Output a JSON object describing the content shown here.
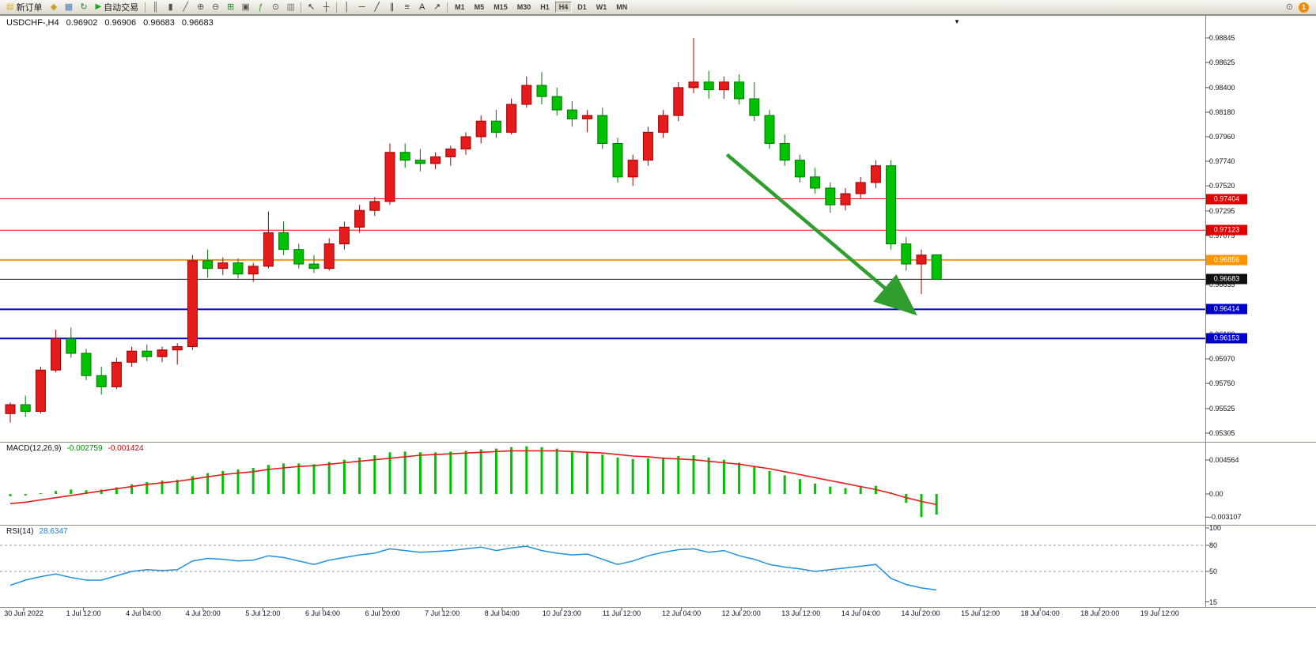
{
  "colors": {
    "up": "#e51b1b",
    "up_stroke": "#9b0000",
    "down": "#00c200",
    "down_stroke": "#007400",
    "macd_hist": "#00c200",
    "macd_signal": "#e51b1b",
    "rsi_line": "#1e90e0",
    "arrow": "#2f9e2f",
    "divider": "#8f8c84"
  },
  "toolbar": {
    "new_order_label": "新订单",
    "auto_trading_label": "自动交易",
    "icons": [
      {
        "name": "metaeditor-icon",
        "g": "◆",
        "c": "#c9a227"
      },
      {
        "name": "market-watch-icon",
        "g": "▦",
        "c": "#4a7ab5"
      },
      {
        "name": "refresh-icon",
        "g": "↻",
        "c": "#2a8a2a"
      },
      {
        "name": "sep"
      },
      {
        "name": "bar-chart-icon",
        "g": "║",
        "c": "#555555"
      },
      {
        "name": "candlestick-chart-icon",
        "g": "▮",
        "c": "#555555"
      },
      {
        "name": "line-chart-icon",
        "g": "╱",
        "c": "#555555"
      },
      {
        "name": "zoom-in-icon",
        "g": "⊕",
        "c": "#555555"
      },
      {
        "name": "zoom-out-icon",
        "g": "⊖",
        "c": "#555555"
      },
      {
        "name": "tile-windows-icon",
        "g": "⊞",
        "c": "#2a8a2a"
      },
      {
        "name": "cascade-windows-icon",
        "g": "▣",
        "c": "#555555"
      },
      {
        "name": "indicators-icon",
        "g": "ƒ",
        "c": "#1faa1f"
      },
      {
        "name": "period-icon",
        "g": "⊙",
        "c": "#555555"
      },
      {
        "name": "templates-icon",
        "g": "▥",
        "c": "#777777"
      },
      {
        "name": "sep"
      },
      {
        "name": "cursor-icon",
        "g": "↖",
        "c": "#333333"
      },
      {
        "name": "crosshair-icon",
        "g": "┼",
        "c": "#333333"
      },
      {
        "name": "sep"
      },
      {
        "name": "vertical-line-icon",
        "g": "│",
        "c": "#333333"
      },
      {
        "name": "horizontal-line-icon",
        "g": "─",
        "c": "#333333"
      },
      {
        "name": "trendline-icon",
        "g": "╱",
        "c": "#333333"
      },
      {
        "name": "channel-icon",
        "g": "∥",
        "c": "#333333"
      },
      {
        "name": "fibonacci-icon",
        "g": "≡",
        "c": "#333333"
      },
      {
        "name": "text-icon",
        "g": "A",
        "c": "#333333"
      },
      {
        "name": "arrows-icon",
        "g": "↗",
        "c": "#333333"
      },
      {
        "name": "sep"
      }
    ],
    "timeframes": [
      "M1",
      "M5",
      "M15",
      "M30",
      "H1",
      "H4",
      "D1",
      "W1",
      "MN"
    ],
    "active_timeframe": "H4",
    "notification_count": "1"
  },
  "chart": {
    "title": {
      "symbol_tf": "USDCHF-,H4",
      "open": "0.96902",
      "high": "0.96906",
      "low": "0.96683",
      "close": "0.96683"
    },
    "price_badges": [
      {
        "text": "0.97404",
        "price": 0.97404,
        "color": "#e00000"
      },
      {
        "text": "0.97123",
        "price": 0.97123,
        "color": "#e00000"
      },
      {
        "text": "0.96856",
        "price": 0.96856,
        "color": "#ff9400"
      },
      {
        "text": "0.96683",
        "price": 0.96683,
        "color": "#111111"
      },
      {
        "text": "0.96414",
        "price": 0.96414,
        "color": "#0000cc"
      },
      {
        "text": "0.96153",
        "price": 0.96153,
        "color": "#0000cc"
      }
    ]
  },
  "chart_data": {
    "type": "candlestick",
    "symbol": "USDCHF",
    "timeframe": "H4",
    "color_convention": "red=up, green=down",
    "axis": {
      "top_price": 0.98845,
      "bottom_price": 0.95305
    },
    "price_axis_ticks": [
      "0.98845",
      "0.98625",
      "0.98400",
      "0.98180",
      "0.97960",
      "0.97740",
      "0.97520",
      "0.97295",
      "0.97075",
      "0.96635",
      "0.96190",
      "0.95970",
      "0.95750",
      "0.95525",
      "0.95305"
    ],
    "horizontal_lines": [
      {
        "name": "resistance-line-upper",
        "price": 0.97404,
        "color": "#ff0000",
        "width": 1
      },
      {
        "name": "resistance-line-lower",
        "price": 0.97123,
        "color": "#ff0000",
        "width": 1
      },
      {
        "name": "support-orange-line",
        "price": 0.96856,
        "color": "#ff9400",
        "width": 2
      },
      {
        "name": "current-price-line",
        "price": 0.96683,
        "color": "#1a1a1a",
        "width": 1
      },
      {
        "name": "target-blue-line-upper",
        "price": 0.96414,
        "color": "#0000cc",
        "width": 2
      },
      {
        "name": "target-blue-line-lower",
        "price": 0.96153,
        "color": "#0000cc",
        "width": 2
      }
    ],
    "current_price": 0.96683,
    "trend_arrow": {
      "start_index": 47.2,
      "start_price": 0.978,
      "end_index": 59.2,
      "end_price": 0.9642,
      "color": "#2f9e2f",
      "direction": "down"
    },
    "candles_ohlc": [
      [
        0.9548,
        0.9558,
        0.954,
        0.9556
      ],
      [
        0.9556,
        0.9564,
        0.9545,
        0.955
      ],
      [
        0.955,
        0.959,
        0.9548,
        0.9587
      ],
      [
        0.9587,
        0.9623,
        0.9585,
        0.9615
      ],
      [
        0.9615,
        0.9625,
        0.9598,
        0.9602
      ],
      [
        0.9602,
        0.9606,
        0.9578,
        0.9582
      ],
      [
        0.9582,
        0.959,
        0.9565,
        0.9572
      ],
      [
        0.9572,
        0.9598,
        0.957,
        0.9594
      ],
      [
        0.9594,
        0.9608,
        0.959,
        0.9604
      ],
      [
        0.9604,
        0.961,
        0.9595,
        0.9599
      ],
      [
        0.9599,
        0.9608,
        0.9594,
        0.9605
      ],
      [
        0.9605,
        0.9611,
        0.9592,
        0.9608
      ],
      [
        0.9608,
        0.969,
        0.9605,
        0.9685
      ],
      [
        0.9685,
        0.9695,
        0.967,
        0.9678
      ],
      [
        0.9678,
        0.9688,
        0.9672,
        0.9683
      ],
      [
        0.9683,
        0.9687,
        0.9669,
        0.9673
      ],
      [
        0.9673,
        0.9683,
        0.9666,
        0.968
      ],
      [
        0.968,
        0.9729,
        0.9678,
        0.971
      ],
      [
        0.971,
        0.972,
        0.969,
        0.9695
      ],
      [
        0.9695,
        0.97,
        0.9678,
        0.9682
      ],
      [
        0.9682,
        0.969,
        0.9674,
        0.9678
      ],
      [
        0.9678,
        0.9705,
        0.9676,
        0.97
      ],
      [
        0.97,
        0.972,
        0.9695,
        0.9715
      ],
      [
        0.9715,
        0.9735,
        0.971,
        0.973
      ],
      [
        0.973,
        0.9742,
        0.9725,
        0.9738
      ],
      [
        0.9738,
        0.979,
        0.9735,
        0.9782
      ],
      [
        0.9782,
        0.979,
        0.9768,
        0.9775
      ],
      [
        0.9775,
        0.9785,
        0.9765,
        0.9772
      ],
      [
        0.9772,
        0.9782,
        0.9767,
        0.9778
      ],
      [
        0.9778,
        0.9788,
        0.977,
        0.9785
      ],
      [
        0.9785,
        0.98,
        0.978,
        0.9796
      ],
      [
        0.9796,
        0.9815,
        0.979,
        0.981
      ],
      [
        0.981,
        0.982,
        0.9795,
        0.98
      ],
      [
        0.98,
        0.983,
        0.9798,
        0.9825
      ],
      [
        0.9825,
        0.985,
        0.9822,
        0.9842
      ],
      [
        0.9842,
        0.9854,
        0.9825,
        0.9832
      ],
      [
        0.9832,
        0.984,
        0.9815,
        0.982
      ],
      [
        0.982,
        0.9828,
        0.9805,
        0.9812
      ],
      [
        0.9812,
        0.982,
        0.98,
        0.9815
      ],
      [
        0.9815,
        0.9822,
        0.9785,
        0.979
      ],
      [
        0.979,
        0.9795,
        0.9755,
        0.976
      ],
      [
        0.976,
        0.978,
        0.9752,
        0.9775
      ],
      [
        0.9775,
        0.9805,
        0.977,
        0.98
      ],
      [
        0.98,
        0.982,
        0.9795,
        0.9815
      ],
      [
        0.9815,
        0.9845,
        0.981,
        0.984
      ],
      [
        0.984,
        0.98845,
        0.9835,
        0.9845
      ],
      [
        0.9845,
        0.9855,
        0.983,
        0.9838
      ],
      [
        0.9838,
        0.985,
        0.983,
        0.9845
      ],
      [
        0.9845,
        0.9852,
        0.9825,
        0.983
      ],
      [
        0.983,
        0.9845,
        0.981,
        0.9815
      ],
      [
        0.9815,
        0.982,
        0.9785,
        0.979
      ],
      [
        0.979,
        0.9798,
        0.977,
        0.9775
      ],
      [
        0.9775,
        0.978,
        0.9755,
        0.976
      ],
      [
        0.976,
        0.9768,
        0.9745,
        0.975
      ],
      [
        0.975,
        0.9755,
        0.9728,
        0.9735
      ],
      [
        0.9735,
        0.975,
        0.973,
        0.9745
      ],
      [
        0.9745,
        0.976,
        0.974,
        0.9755
      ],
      [
        0.9755,
        0.9775,
        0.975,
        0.977
      ],
      [
        0.977,
        0.9775,
        0.9695,
        0.97
      ],
      [
        0.97,
        0.9706,
        0.9676,
        0.9682
      ],
      [
        0.9682,
        0.9695,
        0.9655,
        0.969
      ],
      [
        0.96902,
        0.96906,
        0.96683,
        0.96683
      ]
    ],
    "macd": {
      "label": "MACD(12,26,9)",
      "main_value": "-0.002759",
      "signal_value": "-0.001424",
      "axis_labels": [
        "0.004564",
        "0.00",
        "-0.003107"
      ],
      "axis_values": [
        0.004564,
        0,
        -0.003107
      ],
      "histogram": [
        -0.0003,
        -0.0002,
        0.0001,
        0.0004,
        0.0006,
        0.0005,
        0.0006,
        0.0009,
        0.0013,
        0.0016,
        0.0018,
        0.0019,
        0.0024,
        0.0028,
        0.0031,
        0.0033,
        0.0035,
        0.0039,
        0.0041,
        0.0041,
        0.004,
        0.0043,
        0.0046,
        0.0049,
        0.0052,
        0.0056,
        0.0057,
        0.0056,
        0.0056,
        0.0057,
        0.0058,
        0.006,
        0.0061,
        0.0063,
        0.0064,
        0.0063,
        0.0061,
        0.0058,
        0.0056,
        0.0053,
        0.0049,
        0.0047,
        0.0048,
        0.0049,
        0.0051,
        0.0052,
        0.0049,
        0.0046,
        0.0042,
        0.0037,
        0.0031,
        0.0025,
        0.002,
        0.0014,
        0.001,
        0.0008,
        0.0009,
        0.0011,
        0.0002,
        -0.0012,
        -0.003107,
        -0.002759
      ],
      "signal": [
        -0.0013,
        -0.0011,
        -0.0008,
        -0.0005,
        -0.0002,
        0.0001,
        0.0004,
        0.0007,
        0.001,
        0.0013,
        0.0015,
        0.0017,
        0.002,
        0.0023,
        0.0026,
        0.0028,
        0.003,
        0.0033,
        0.0035,
        0.0037,
        0.0038,
        0.004,
        0.0042,
        0.0044,
        0.0046,
        0.0048,
        0.005,
        0.0052,
        0.0053,
        0.0054,
        0.0055,
        0.0056,
        0.0057,
        0.0058,
        0.0058,
        0.0058,
        0.0058,
        0.0057,
        0.0056,
        0.0055,
        0.0053,
        0.0051,
        0.005,
        0.0048,
        0.0047,
        0.0046,
        0.0044,
        0.0042,
        0.004,
        0.0037,
        0.0034,
        0.003,
        0.0026,
        0.0022,
        0.0018,
        0.0014,
        0.001,
        0.0006,
        0.0001,
        -0.0005,
        -0.001,
        -0.001424
      ]
    },
    "rsi": {
      "label": "RSI(14)",
      "value": "28.6347",
      "axis_labels": [
        "100",
        "80",
        "50",
        "15"
      ],
      "axis_values": [
        100,
        80,
        50,
        15
      ],
      "dashed_levels": [
        80,
        50
      ],
      "values": [
        34,
        40,
        44,
        47,
        43,
        40,
        40,
        45,
        50,
        52,
        51,
        52,
        62,
        65,
        64,
        62,
        63,
        68,
        66,
        62,
        58,
        63,
        66,
        69,
        71,
        76,
        74,
        72,
        73,
        74,
        76,
        78,
        74,
        77,
        79,
        74,
        71,
        69,
        70,
        64,
        58,
        62,
        68,
        72,
        75,
        76,
        72,
        74,
        68,
        64,
        58,
        55,
        53,
        50,
        52,
        54,
        56,
        58,
        42,
        35,
        31,
        28.6347
      ]
    },
    "time_labels": [
      "30 Jun 2022",
      "1 Jul 12:00",
      "4 Jul 04:00",
      "4 Jul 20:00",
      "5 Jul 12:00",
      "6 Jul 04:00",
      "6 Jul 20:00",
      "7 Jul 12:00",
      "8 Jul 04:00",
      "10 Jul 23:00",
      "11 Jul 12:00",
      "12 Jul 04:00",
      "12 Jul 20:00",
      "13 Jul 12:00",
      "14 Jul 04:00",
      "14 Jul 20:00",
      "15 Jul 12:00",
      "18 Jul 04:00",
      "18 Jul 20:00",
      "19 Jul 12:00"
    ]
  }
}
